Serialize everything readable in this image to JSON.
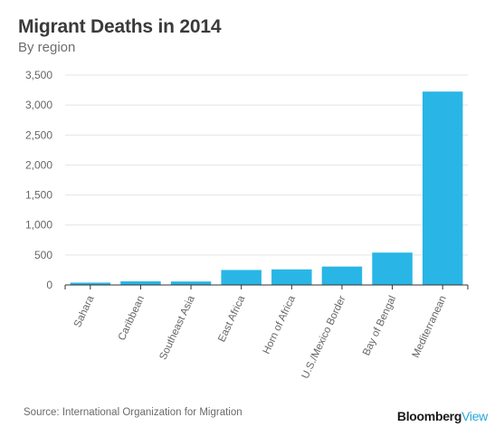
{
  "header": {
    "title": "Migrant Deaths in 2014",
    "subtitle": "By region"
  },
  "footer": {
    "source": "Source: International Organization for Migration",
    "brand_bold": "Bloomberg",
    "brand_light": "View"
  },
  "colors": {
    "bar": "#29b6e6",
    "grid": "#e4e4e4",
    "axis": "#333333",
    "brand_accent": "#2aa7d9"
  },
  "chart_data": {
    "type": "bar",
    "title": "Migrant Deaths in 2014",
    "subtitle": "By region",
    "xlabel": "",
    "ylabel": "",
    "categories": [
      "Sahara",
      "Caribbean",
      "Southeast Asia",
      "East Africa",
      "Horn of Africa",
      "U.S./Mexico Border",
      "Bay of Bengal",
      "Mediterranean"
    ],
    "values": [
      39,
      61,
      58,
      250,
      260,
      307,
      540,
      3225
    ],
    "ylim": [
      0,
      3500
    ],
    "yticks": [
      0,
      500,
      1000,
      1500,
      2000,
      2500,
      3000,
      3500
    ],
    "ytick_labels": [
      "0",
      "500",
      "1,000",
      "1,500",
      "2,000",
      "2,500",
      "3,000",
      "3,500"
    ],
    "grid": true,
    "legend": "none"
  }
}
